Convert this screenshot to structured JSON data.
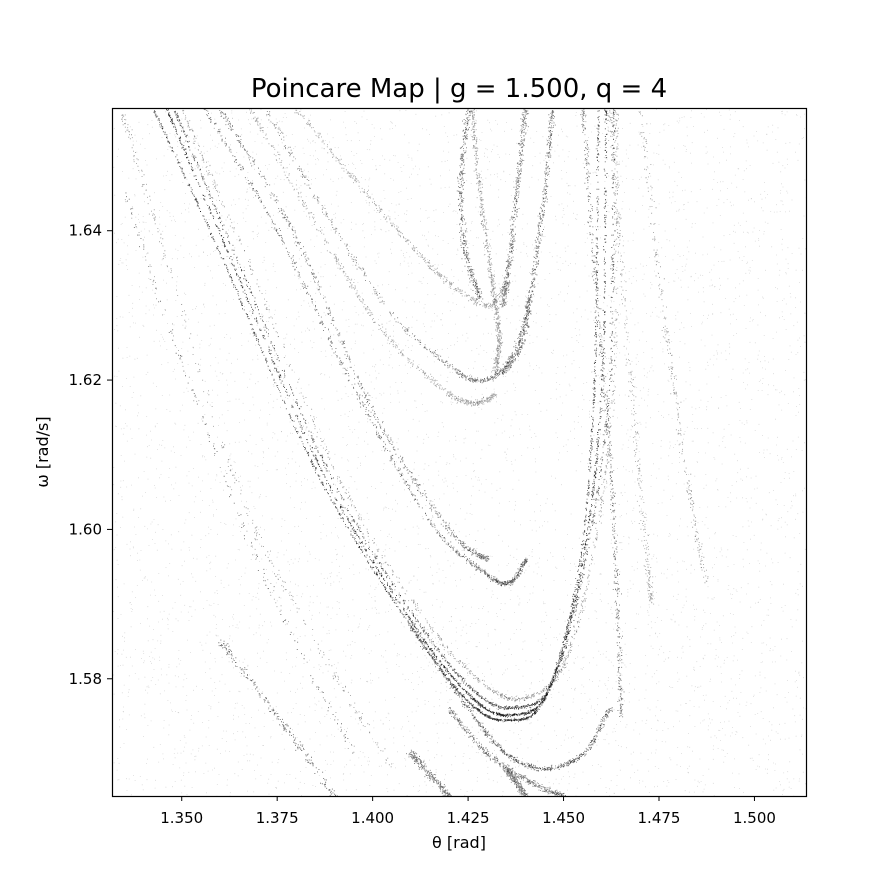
{
  "chart_data": {
    "type": "scatter",
    "title": "Poincare Map | g = 1.500, q = 4",
    "xlabel": "θ [rad]",
    "ylabel": "ω [rad/s]",
    "xlim": [
      1.332,
      1.5135
    ],
    "ylim": [
      1.5643,
      1.6563
    ],
    "x_ticks": [
      1.35,
      1.375,
      1.4,
      1.425,
      1.45,
      1.475,
      1.5
    ],
    "x_tick_labels": [
      "1.350",
      "1.375",
      "1.400",
      "1.425",
      "1.450",
      "1.475",
      "1.500"
    ],
    "y_ticks": [
      1.58,
      1.6,
      1.62,
      1.64
    ],
    "y_tick_labels": [
      "1.58",
      "1.60",
      "1.62",
      "1.64"
    ],
    "grid": false,
    "legend": "none",
    "marker_color": "#000000",
    "series": [
      {
        "values_description": "dense attractor points",
        "strands": [
          {
            "weight": 1.0,
            "points": [
              [
                1.3425,
                1.6563
              ],
              [
                1.36,
                1.637
              ],
              [
                1.385,
                1.608
              ],
              [
                1.41,
                1.587
              ],
              [
                1.425,
                1.577
              ],
              [
                1.435,
                1.5745
              ],
              [
                1.445,
                1.5775
              ],
              [
                1.454,
                1.595
              ],
              [
                1.458,
                1.62
              ],
              [
                1.459,
                1.6563
              ]
            ]
          },
          {
            "weight": 0.95,
            "points": [
              [
                1.346,
                1.6563
              ],
              [
                1.363,
                1.636
              ],
              [
                1.387,
                1.6075
              ],
              [
                1.411,
                1.587
              ],
              [
                1.426,
                1.5775
              ],
              [
                1.436,
                1.5752
              ],
              [
                1.446,
                1.5785
              ],
              [
                1.455,
                1.596
              ],
              [
                1.46,
                1.62
              ],
              [
                1.461,
                1.6563
              ]
            ]
          },
          {
            "weight": 0.8,
            "points": [
              [
                1.348,
                1.6563
              ],
              [
                1.365,
                1.6355
              ],
              [
                1.389,
                1.607
              ],
              [
                1.412,
                1.5875
              ],
              [
                1.427,
                1.5782
              ],
              [
                1.437,
                1.5762
              ],
              [
                1.447,
                1.5795
              ],
              [
                1.456,
                1.597
              ],
              [
                1.462,
                1.62
              ],
              [
                1.463,
                1.6563
              ]
            ]
          },
          {
            "weight": 0.6,
            "points": [
              [
                1.35,
                1.6563
              ],
              [
                1.368,
                1.635
              ],
              [
                1.392,
                1.606
              ],
              [
                1.415,
                1.587
              ],
              [
                1.43,
                1.579
              ],
              [
                1.44,
                1.5775
              ],
              [
                1.45,
                1.582
              ],
              [
                1.458,
                1.598
              ],
              [
                1.463,
                1.62
              ],
              [
                1.464,
                1.6563
              ]
            ]
          },
          {
            "weight": 0.55,
            "points": [
              [
                1.356,
                1.6563
              ],
              [
                1.375,
                1.64
              ],
              [
                1.395,
                1.619
              ],
              [
                1.415,
                1.601
              ],
              [
                1.43,
                1.594
              ],
              [
                1.436,
                1.593
              ],
              [
                1.44,
                1.596
              ]
            ]
          },
          {
            "weight": 0.45,
            "points": [
              [
                1.36,
                1.6563
              ],
              [
                1.38,
                1.639
              ],
              [
                1.4,
                1.616
              ],
              [
                1.42,
                1.6
              ],
              [
                1.43,
                1.596
              ]
            ]
          },
          {
            "weight": 0.45,
            "points": [
              [
                1.372,
                1.6563
              ],
              [
                1.388,
                1.642
              ],
              [
                1.405,
                1.629
              ],
              [
                1.42,
                1.622
              ],
              [
                1.427,
                1.62
              ],
              [
                1.433,
                1.621
              ],
              [
                1.438,
                1.625
              ],
              [
                1.441,
                1.631
              ]
            ]
          },
          {
            "weight": 0.4,
            "points": [
              [
                1.368,
                1.6563
              ],
              [
                1.385,
                1.641
              ],
              [
                1.402,
                1.627
              ],
              [
                1.418,
                1.619
              ],
              [
                1.426,
                1.617
              ],
              [
                1.432,
                1.618
              ]
            ]
          },
          {
            "weight": 0.35,
            "points": [
              [
                1.38,
                1.6563
              ],
              [
                1.395,
                1.647
              ],
              [
                1.41,
                1.638
              ],
              [
                1.42,
                1.633
              ],
              [
                1.43,
                1.63
              ],
              [
                1.435,
                1.633
              ]
            ]
          },
          {
            "weight": 0.45,
            "points": [
              [
                1.426,
                1.6563
              ],
              [
                1.428,
                1.645
              ],
              [
                1.431,
                1.634
              ],
              [
                1.433,
                1.626
              ],
              [
                1.432,
                1.621
              ]
            ]
          },
          {
            "weight": 0.4,
            "points": [
              [
                1.447,
                1.6563
              ],
              [
                1.445,
                1.645
              ],
              [
                1.442,
                1.634
              ],
              [
                1.439,
                1.625
              ],
              [
                1.434,
                1.621
              ]
            ]
          },
          {
            "weight": 0.35,
            "points": [
              [
                1.44,
                1.6563
              ],
              [
                1.438,
                1.647
              ],
              [
                1.436,
                1.637
              ],
              [
                1.434,
                1.63
              ]
            ]
          },
          {
            "weight": 0.3,
            "points": [
              [
                1.425,
                1.6563
              ],
              [
                1.423,
                1.647
              ],
              [
                1.424,
                1.638
              ],
              [
                1.428,
                1.631
              ]
            ]
          },
          {
            "weight": 0.4,
            "points": [
              [
                1.455,
                1.6563
              ],
              [
                1.458,
                1.635
              ],
              [
                1.462,
                1.61
              ],
              [
                1.464,
                1.59
              ],
              [
                1.465,
                1.575
              ]
            ]
          },
          {
            "weight": 0.25,
            "points": [
              [
                1.462,
                1.6563
              ],
              [
                1.466,
                1.63
              ],
              [
                1.47,
                1.605
              ],
              [
                1.473,
                1.59
              ]
            ]
          },
          {
            "weight": 0.2,
            "points": [
              [
                1.47,
                1.6563
              ],
              [
                1.476,
                1.63
              ],
              [
                1.482,
                1.608
              ],
              [
                1.487,
                1.593
              ]
            ]
          },
          {
            "weight": 0.2,
            "points": [
              [
                1.334,
                1.6563
              ],
              [
                1.345,
                1.638
              ],
              [
                1.365,
                1.605
              ],
              [
                1.385,
                1.585
              ],
              [
                1.405,
                1.568
              ]
            ]
          },
          {
            "weight": 0.15,
            "points": [
              [
                1.335,
                1.645
              ],
              [
                1.355,
                1.615
              ],
              [
                1.375,
                1.59
              ],
              [
                1.395,
                1.57
              ]
            ]
          },
          {
            "weight": 0.15,
            "points": [
              [
                1.36,
                1.585
              ],
              [
                1.375,
                1.575
              ],
              [
                1.39,
                1.5643
              ]
            ]
          },
          {
            "weight": 0.5,
            "points": [
              [
                1.41,
                1.587
              ],
              [
                1.425,
                1.576
              ],
              [
                1.435,
                1.57
              ],
              [
                1.445,
                1.568
              ],
              [
                1.455,
                1.57
              ],
              [
                1.462,
                1.576
              ]
            ]
          },
          {
            "weight": 0.35,
            "points": [
              [
                1.42,
                1.576
              ],
              [
                1.43,
                1.57
              ],
              [
                1.442,
                1.566
              ],
              [
                1.45,
                1.5643
              ]
            ]
          },
          {
            "weight": 0.25,
            "points": [
              [
                1.435,
                1.568
              ],
              [
                1.44,
                1.5643
              ]
            ]
          },
          {
            "weight": 0.2,
            "points": [
              [
                1.41,
                1.57
              ],
              [
                1.42,
                1.5643
              ]
            ]
          }
        ]
      }
    ]
  }
}
